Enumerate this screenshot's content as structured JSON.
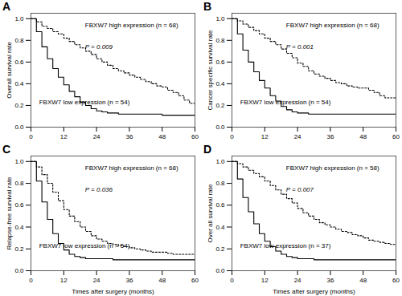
{
  "chart_data": [
    {
      "type": "line",
      "title": "A",
      "ylabel": "Overall survival rate",
      "color": "#000000",
      "annotations": [
        "P = 0.009"
      ],
      "x": [
        0,
        2,
        4,
        6,
        8,
        10,
        12,
        14,
        16,
        18,
        20,
        22,
        24,
        26,
        28,
        30,
        32,
        34,
        36,
        38,
        40,
        42,
        44,
        46,
        48,
        50,
        52,
        54,
        56,
        58,
        60
      ],
      "series": [
        {
          "name": "FBXW7 high expression (n = 68)",
          "line_style": "dotted",
          "values": [
            1.0,
            0.97,
            0.93,
            0.91,
            0.88,
            0.86,
            0.82,
            0.79,
            0.76,
            0.73,
            0.7,
            0.67,
            0.63,
            0.6,
            0.57,
            0.54,
            0.52,
            0.5,
            0.48,
            0.46,
            0.44,
            0.42,
            0.4,
            0.38,
            0.37,
            0.34,
            0.32,
            0.29,
            0.25,
            0.22,
            0.22
          ]
        },
        {
          "name": "FBXW7 low expression (n = 54)",
          "line_style": "solid",
          "values": [
            1.0,
            0.88,
            0.74,
            0.63,
            0.54,
            0.46,
            0.39,
            0.33,
            0.28,
            0.23,
            0.2,
            0.17,
            0.15,
            0.14,
            0.13,
            0.13,
            0.12,
            0.12,
            0.12,
            0.12,
            0.12,
            0.12,
            0.12,
            0.12,
            0.11,
            0.11,
            0.11,
            0.11,
            0.11,
            0.11,
            0.11
          ]
        }
      ],
      "xlim": [
        0,
        60
      ],
      "xticks": [
        0,
        12,
        24,
        36,
        48,
        60
      ],
      "ylim": [
        0.0,
        1.05
      ],
      "yticks": [
        {
          "value": 0.0,
          "label": "0.0"
        },
        0.2,
        0.4,
        0.6,
        0.8,
        {
          "value": 1.0,
          "label": "1.0"
        }
      ]
    },
    {
      "type": "line",
      "title": "B",
      "ylabel": "Cancer specific survival rate",
      "color": "#000000",
      "annotations": [
        "P = 0.001"
      ],
      "x": [
        0,
        2,
        4,
        6,
        8,
        10,
        12,
        14,
        16,
        18,
        20,
        22,
        24,
        26,
        28,
        30,
        32,
        34,
        36,
        38,
        40,
        42,
        44,
        46,
        48,
        50,
        52,
        54,
        56,
        58,
        60
      ],
      "series": [
        {
          "name": "FBXW7 high expression (n = 68)",
          "line_style": "dotted",
          "values": [
            1.0,
            0.98,
            0.95,
            0.92,
            0.89,
            0.86,
            0.82,
            0.79,
            0.76,
            0.72,
            0.68,
            0.64,
            0.59,
            0.56,
            0.52,
            0.49,
            0.47,
            0.45,
            0.43,
            0.41,
            0.4,
            0.38,
            0.37,
            0.36,
            0.36,
            0.34,
            0.32,
            0.29,
            0.27,
            0.27,
            0.27
          ]
        },
        {
          "name": "FBXW7 low expression (n = 54)",
          "line_style": "solid",
          "values": [
            1.0,
            0.86,
            0.71,
            0.6,
            0.51,
            0.43,
            0.36,
            0.29,
            0.24,
            0.19,
            0.16,
            0.14,
            0.13,
            0.13,
            0.12,
            0.12,
            0.12,
            0.12,
            0.12,
            0.12,
            0.12,
            0.12,
            0.12,
            0.12,
            0.12,
            0.12,
            0.12,
            0.12,
            0.12,
            0.12,
            0.12
          ]
        }
      ],
      "xlim": [
        0,
        60
      ],
      "xticks": [
        0,
        12,
        24,
        36,
        48,
        60
      ],
      "ylim": [
        0.0,
        1.05
      ],
      "yticks": [
        {
          "value": 0.0,
          "label": "0.0"
        },
        0.2,
        0.4,
        0.6,
        0.8,
        {
          "value": 1.0,
          "label": "1.0"
        }
      ]
    },
    {
      "type": "line",
      "title": "C",
      "ylabel": "Relapse-free survival rate",
      "xlabel": "Times after surgery (months)",
      "color": "#000000",
      "annotations": [
        "P = 0.036"
      ],
      "x": [
        0,
        2,
        4,
        6,
        8,
        10,
        12,
        14,
        16,
        18,
        20,
        22,
        24,
        26,
        28,
        30,
        32,
        34,
        36,
        38,
        40,
        42,
        44,
        46,
        48,
        50,
        52,
        54,
        56,
        58,
        60
      ],
      "series": [
        {
          "name": "FBXW7 high expression (n = 68)",
          "line_style": "dotted",
          "values": [
            1.0,
            0.95,
            0.88,
            0.8,
            0.72,
            0.64,
            0.56,
            0.5,
            0.45,
            0.4,
            0.36,
            0.32,
            0.29,
            0.27,
            0.25,
            0.24,
            0.23,
            0.22,
            0.21,
            0.2,
            0.19,
            0.18,
            0.17,
            0.17,
            0.17,
            0.16,
            0.15,
            0.15,
            0.15,
            0.15,
            0.15
          ]
        },
        {
          "name": "FBXW7 low expression (n = 54)",
          "line_style": "solid",
          "values": [
            1.0,
            0.82,
            0.63,
            0.47,
            0.34,
            0.25,
            0.19,
            0.15,
            0.13,
            0.12,
            0.11,
            0.11,
            0.11,
            0.11,
            0.11,
            0.1,
            0.1,
            0.1,
            0.1,
            0.1,
            0.1,
            0.1,
            0.1,
            0.1,
            0.1,
            0.1,
            0.1,
            0.1,
            0.1,
            0.1,
            0.1
          ]
        }
      ],
      "xlim": [
        0,
        60
      ],
      "xticks": [
        0,
        12,
        24,
        36,
        48,
        60
      ],
      "ylim": [
        0.0,
        1.05
      ],
      "yticks": [
        {
          "value": 0.0,
          "label": "0.0"
        },
        0.2,
        0.4,
        0.6,
        0.8,
        {
          "value": 1.0,
          "label": "1.0"
        }
      ]
    },
    {
      "type": "line",
      "title": "D",
      "ylabel": "Over all survival rate",
      "xlabel": "Times after surgery (months)",
      "color": "#000000",
      "annotations": [
        "P = 0.007"
      ],
      "x": [
        0,
        2,
        4,
        6,
        8,
        10,
        12,
        14,
        16,
        18,
        20,
        22,
        24,
        26,
        28,
        30,
        32,
        34,
        36,
        38,
        40,
        42,
        44,
        46,
        48,
        50,
        52,
        54,
        56,
        58,
        60
      ],
      "series": [
        {
          "name": "FBXW7 high expression (n = 58)",
          "line_style": "dotted",
          "values": [
            1.0,
            0.98,
            0.95,
            0.92,
            0.89,
            0.86,
            0.82,
            0.78,
            0.74,
            0.7,
            0.66,
            0.62,
            0.57,
            0.53,
            0.5,
            0.47,
            0.44,
            0.42,
            0.4,
            0.38,
            0.36,
            0.35,
            0.33,
            0.32,
            0.3,
            0.28,
            0.27,
            0.26,
            0.25,
            0.24,
            0.23
          ]
        },
        {
          "name": "FBXW7 low expression (n = 37)",
          "line_style": "solid",
          "values": [
            1.0,
            0.84,
            0.67,
            0.54,
            0.43,
            0.34,
            0.27,
            0.22,
            0.18,
            0.15,
            0.13,
            0.12,
            0.11,
            0.11,
            0.11,
            0.1,
            0.1,
            0.1,
            0.1,
            0.1,
            0.1,
            0.1,
            0.1,
            0.1,
            0.1,
            0.1,
            0.1,
            0.1,
            0.1,
            0.1,
            0.1
          ]
        }
      ],
      "xlim": [
        0,
        60
      ],
      "xticks": [
        0,
        12,
        24,
        36,
        48,
        60
      ],
      "ylim": [
        0.0,
        1.05
      ],
      "yticks": [
        {
          "value": 0.0,
          "label": "0.0"
        },
        0.2,
        0.4,
        0.6,
        0.8,
        {
          "value": 1.0,
          "label": "1.0"
        }
      ]
    }
  ]
}
